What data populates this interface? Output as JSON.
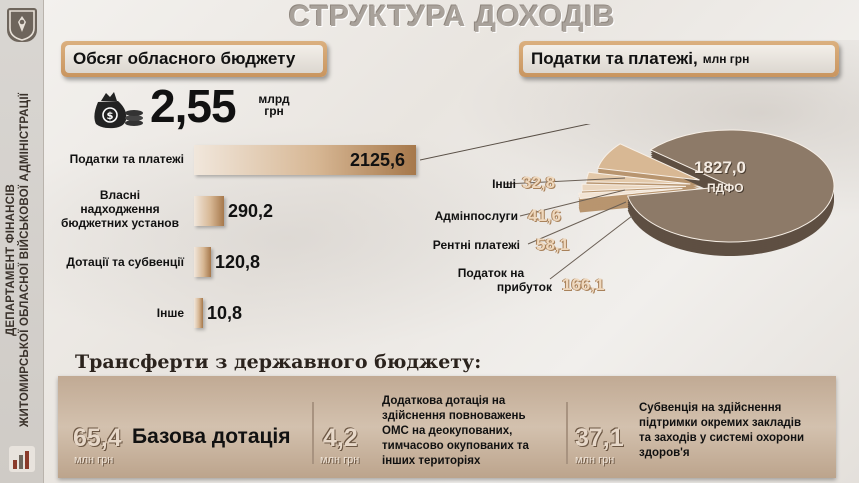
{
  "title": "СТРУКТУРА ДОХОДІВ",
  "sidebar": {
    "org_line1": "ДЕПАРТАМЕНТ ФІНАНСІВ",
    "org_line2": "ЖИТОМИРСЬКОЇ ОБЛАСНОЇ ВІЙСЬКОВОЇ АДМІНІСТРАЦІЇ"
  },
  "budget": {
    "header": "Обсяг обласного бюджету",
    "total_value": "2,55",
    "total_unit_line1": "млрд",
    "total_unit_line2": "грн"
  },
  "chart_data": [
    {
      "type": "bar",
      "categories": [
        "Податки та платежі",
        "Власні надходження бюджетних установ",
        "Дотації та субвенції",
        "Інше"
      ],
      "values": [
        2125.6,
        290.2,
        120.8,
        10.8
      ],
      "value_labels": [
        "2125,6",
        "290,2",
        "120,8",
        "10,8"
      ]
    },
    {
      "type": "pie",
      "title": "Податки та платежі,",
      "title_unit": "млн грн",
      "categories": [
        "ПДФО",
        "Податок на прибуток",
        "Рентні платежі",
        "Адмінпослуги",
        "Інші"
      ],
      "values": [
        1827.0,
        166.1,
        58.1,
        41.6,
        32.8
      ],
      "value_labels": [
        "1827,0",
        "166,1",
        "58,1",
        "41,6",
        "32,8"
      ]
    }
  ],
  "bar_labels": {
    "taxes": "Податки та платежі",
    "own_l1": "Власні",
    "own_l2": "надходження",
    "own_l3": "бюджетних установ",
    "grants": "Дотації та субвенції",
    "other": "Інше"
  },
  "pie_labels": {
    "pdfo": "ПДФО",
    "profit_l1": "Податок на",
    "profit_l2": "прибуток",
    "rent": "Рентні платежі",
    "admin": "Адмінпослуги",
    "other": "Інші"
  },
  "transfers": {
    "title": "Трансферти з державного бюджету:",
    "items": [
      {
        "value": "65,4",
        "unit": "млн грн",
        "name": "Базова дотація"
      },
      {
        "value": "4,2",
        "unit": "млн грн",
        "desc": [
          "Додаткова дотація на",
          "здійснення повноважень",
          "ОМС на деокупованих,",
          "тимчасово окупованих та",
          "інших територіях"
        ]
      },
      {
        "value": "37,1",
        "unit": "млн грн",
        "desc": [
          "Субвенція на здійснення",
          "підтримки окремих закладів",
          "та заходів у системі охорони",
          "здоров'я"
        ]
      }
    ]
  },
  "colors": {
    "accent": "#c9955f",
    "bar_dark": "#a6784b",
    "pie_main": "#8d7a68"
  },
  "icons": {
    "emblem": "coat-of-arms-icon",
    "money": "money-bag-icon",
    "bottom": "bar-chart-icon"
  }
}
